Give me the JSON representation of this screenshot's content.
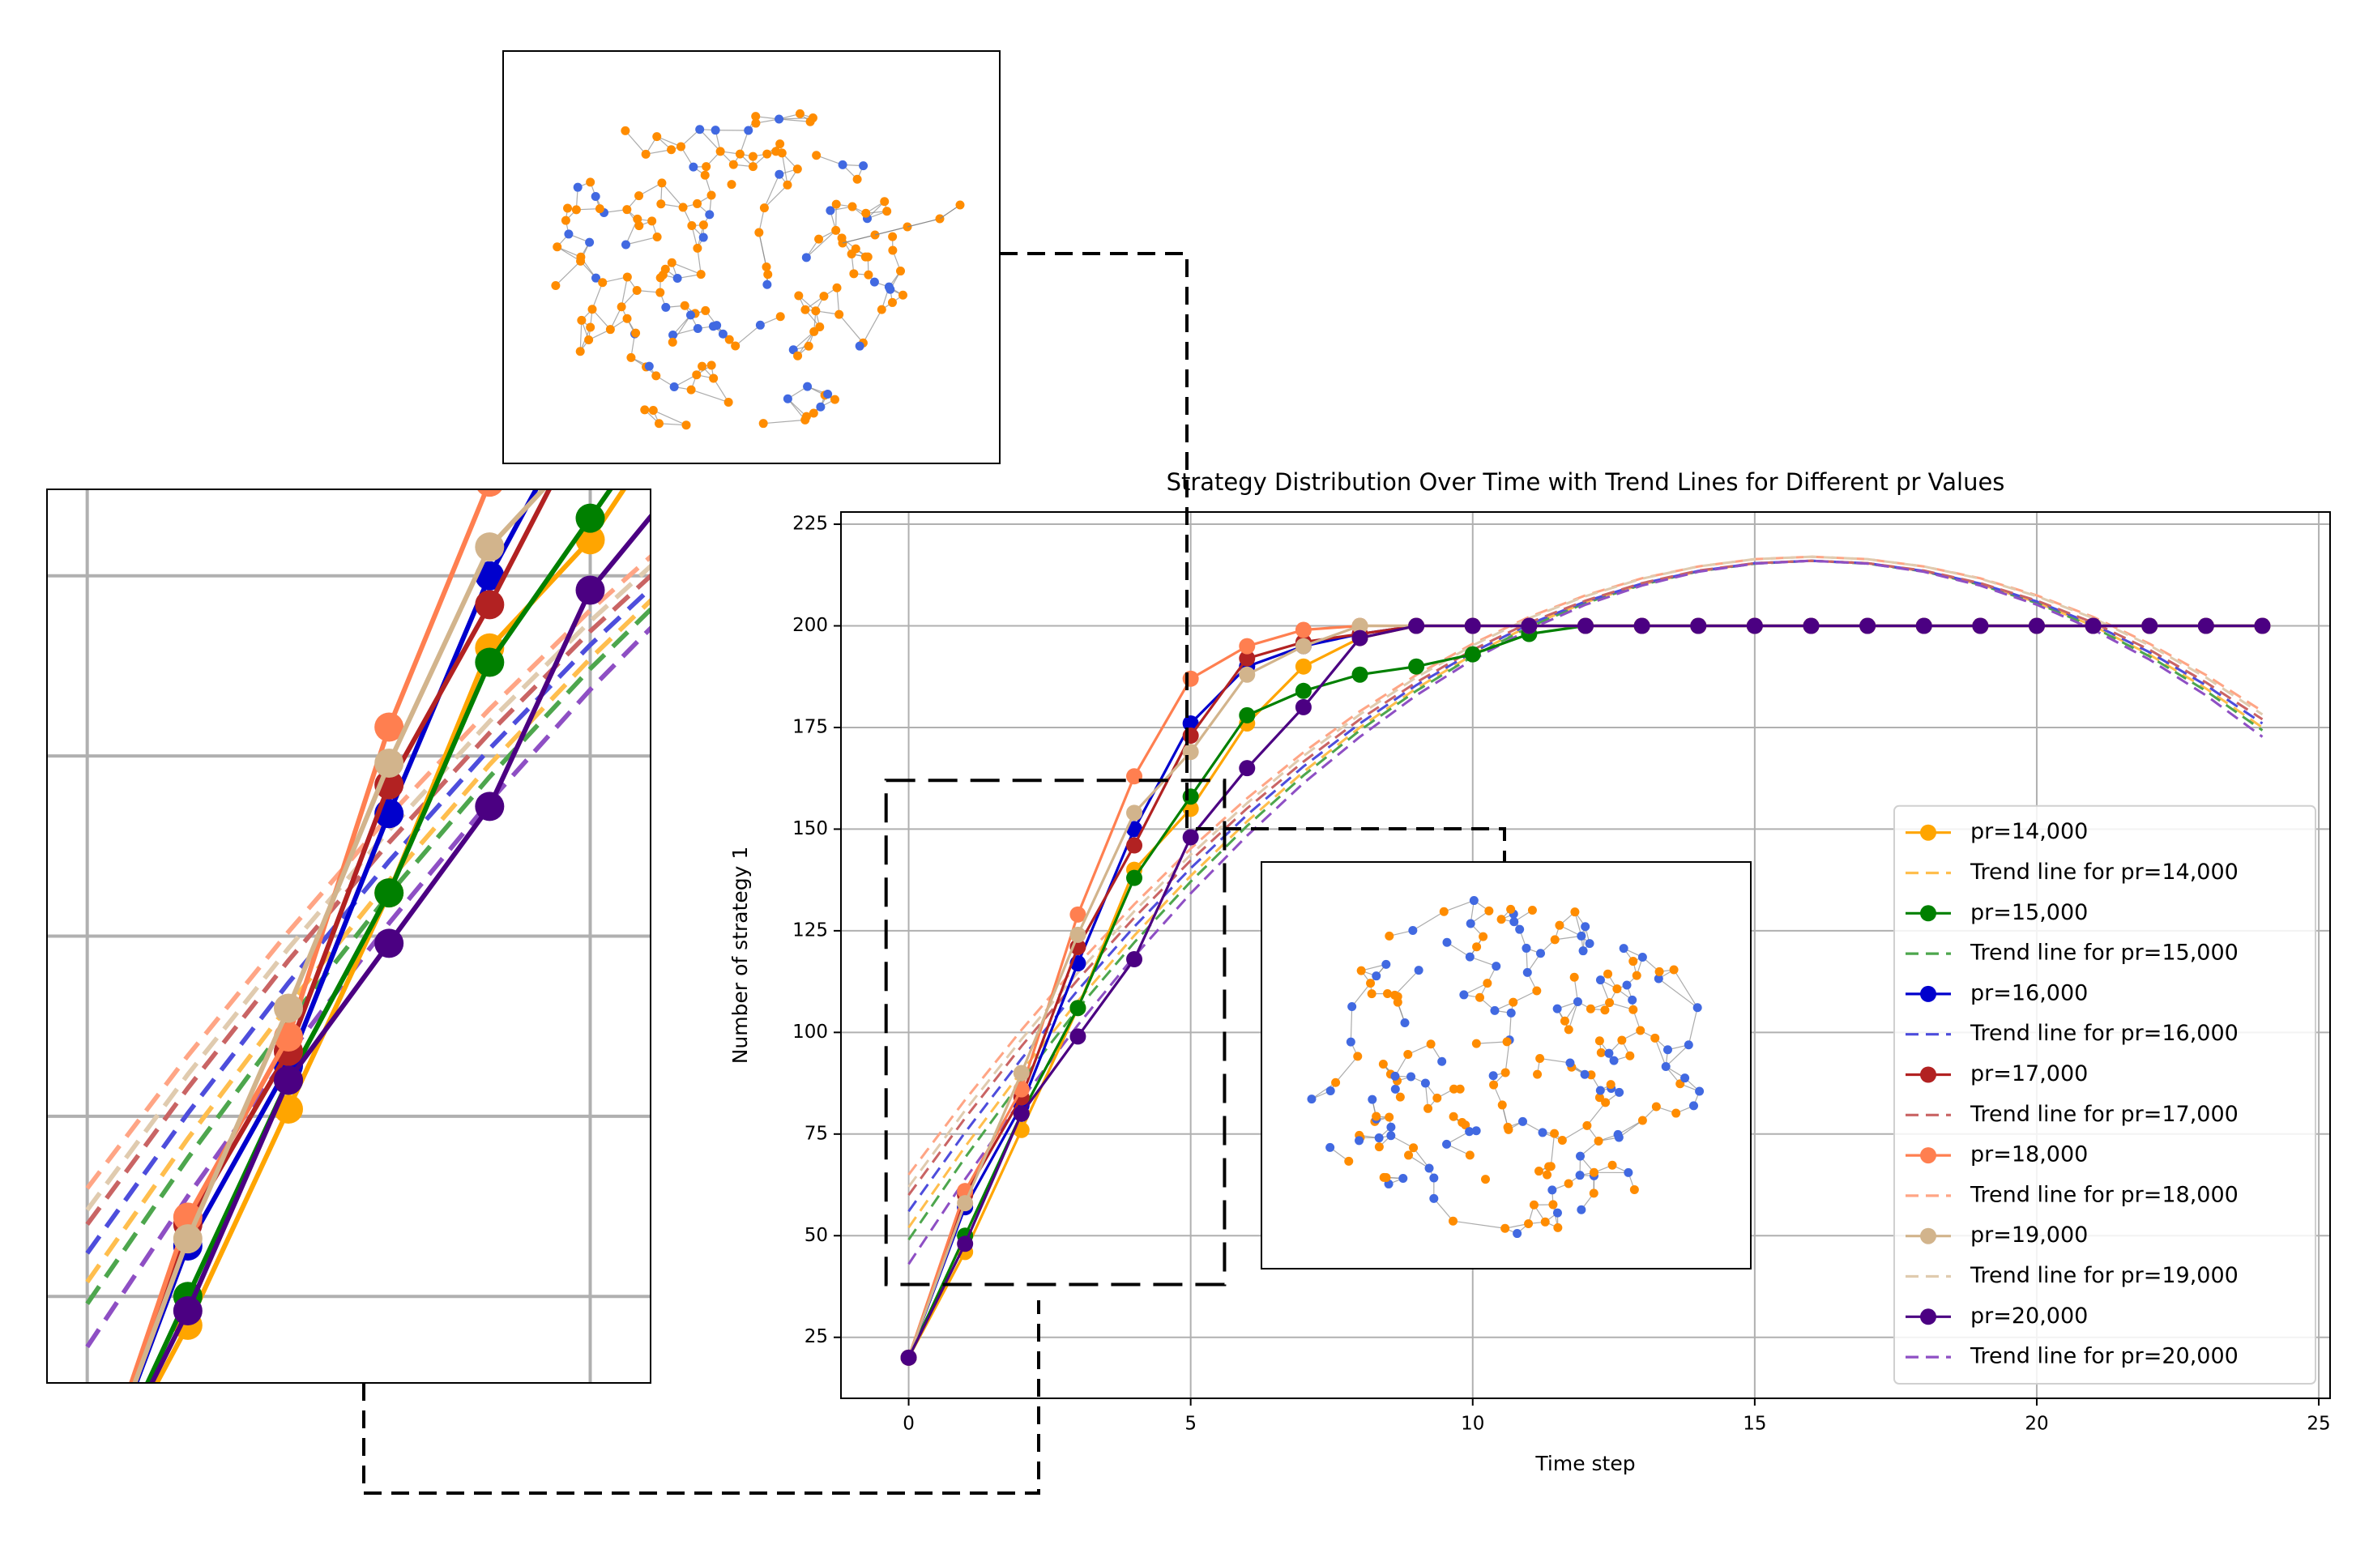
{
  "chart_data": {
    "type": "line",
    "title": "Strategy Distribution Over Time with Trend Lines for Different pr Values",
    "xlabel": "Time step",
    "ylabel": "Number of strategy 1",
    "x": [
      0,
      1,
      2,
      3,
      4,
      5,
      6,
      7,
      8,
      9,
      10,
      11,
      12,
      13,
      14,
      15,
      16,
      17,
      18,
      19,
      20,
      21,
      22,
      23,
      24
    ],
    "xlim": [
      -1.2,
      25.2
    ],
    "ylim": [
      10,
      228
    ],
    "xticks": [
      0,
      5,
      10,
      15,
      20,
      25
    ],
    "yticks": [
      25,
      50,
      75,
      100,
      125,
      150,
      175,
      200,
      225
    ],
    "grid": true,
    "legend": "lower right",
    "zoom": {
      "xlim": [
        -0.4,
        5.6
      ],
      "ylim": [
        38,
        162
      ]
    },
    "series": [
      {
        "name": "pr=14,000",
        "color": "#ffa500",
        "linestyle": "solid",
        "values": [
          20,
          46,
          76,
          106,
          140,
          155,
          176,
          190,
          197,
          200,
          200,
          200,
          200,
          200,
          200,
          200,
          200,
          200,
          200,
          200,
          200,
          200,
          200,
          200,
          200
        ]
      },
      {
        "name": "Trend line for pr=14,000",
        "color": "#ffbe4d",
        "linestyle": "dashed",
        "values": [
          52,
          71.9,
          90.4,
          107.7,
          123.8,
          138.5,
          151.9,
          164.1,
          175,
          184.6,
          192.9,
          200,
          205.8,
          210.2,
          213.4,
          215.4,
          216,
          215.4,
          213.4,
          210.2,
          205.8,
          200,
          192.9,
          184.6,
          175
        ]
      },
      {
        "name": "pr=15,000",
        "color": "#008000",
        "linestyle": "solid",
        "values": [
          20,
          50,
          80,
          106,
          138,
          158,
          178,
          184,
          188,
          190,
          193,
          198,
          200,
          200,
          200,
          200,
          200,
          200,
          200,
          200,
          200,
          200,
          200,
          200,
          200
        ]
      },
      {
        "name": "Trend line for pr=15,000",
        "color": "#4da64d",
        "linestyle": "dashed",
        "values": [
          49,
          69.2,
          88.1,
          105.8,
          122.1,
          137.1,
          150.8,
          163.2,
          174.3,
          184,
          192.5,
          199.7,
          205.6,
          210.1,
          213.4,
          215.3,
          216,
          215.3,
          213.4,
          210.1,
          205.6,
          199.7,
          192.5,
          184,
          174.3
        ]
      },
      {
        "name": "pr=16,000",
        "color": "#0000cd",
        "linestyle": "solid",
        "values": [
          20,
          57,
          82,
          117,
          150,
          176,
          190,
          195,
          198,
          200,
          200,
          200,
          200,
          200,
          200,
          200,
          200,
          200,
          200,
          200,
          200,
          200,
          200,
          200,
          200
        ]
      },
      {
        "name": "Trend line for pr=16,000",
        "color": "#4d4ddc",
        "linestyle": "dashed",
        "values": [
          56,
          75.4,
          93.5,
          110.4,
          126,
          140.4,
          153.5,
          165.4,
          176,
          185.4,
          193.5,
          200.4,
          206,
          210.4,
          213.5,
          215.4,
          216,
          215.4,
          213.5,
          210.4,
          206,
          200.4,
          193.5,
          185.4,
          176
        ]
      },
      {
        "name": "pr=17,000",
        "color": "#b22222",
        "linestyle": "solid",
        "values": [
          20,
          60,
          84,
          121,
          146,
          173,
          192,
          196,
          198,
          200,
          200,
          200,
          200,
          200,
          200,
          200,
          200,
          200,
          200,
          200,
          200,
          200,
          200,
          200,
          200
        ]
      },
      {
        "name": "Trend line for pr=17,000",
        "color": "#c96464",
        "linestyle": "dashed",
        "values": [
          60,
          78.9,
          96.6,
          113,
          128.2,
          142.3,
          155.1,
          166.6,
          177,
          186.1,
          194.1,
          200.8,
          206.2,
          210.5,
          213.6,
          215.4,
          216,
          215.4,
          213.6,
          210.5,
          206.2,
          200.8,
          194.1,
          186.1,
          177
        ]
      },
      {
        "name": "pr=18,000",
        "color": "#ff7f50",
        "linestyle": "solid",
        "values": [
          20,
          61,
          86,
          129,
          163,
          187,
          195,
          199,
          200,
          200,
          200,
          200,
          200,
          200,
          200,
          200,
          200,
          200,
          200,
          200,
          200,
          200,
          200,
          200,
          200
        ]
      },
      {
        "name": "Trend line for pr=18,000",
        "color": "#ffa585",
        "linestyle": "dashed",
        "values": [
          65,
          83.4,
          100.6,
          116.7,
          131.5,
          145.2,
          157.6,
          168.9,
          179,
          187.9,
          195.6,
          202.2,
          207.5,
          211.7,
          214.6,
          216.4,
          217,
          216.4,
          214.6,
          211.7,
          207.5,
          202.2,
          195.6,
          187.9,
          179
        ]
      },
      {
        "name": "pr=19,000",
        "color": "#d2b48c",
        "linestyle": "solid",
        "values": [
          20,
          58,
          90,
          124,
          154,
          169,
          188,
          195,
          200,
          200,
          200,
          200,
          200,
          200,
          200,
          200,
          200,
          200,
          200,
          200,
          200,
          200,
          200,
          200,
          200
        ]
      },
      {
        "name": "Trend line for pr=19,000",
        "color": "#e0cbaf",
        "linestyle": "dashed",
        "values": [
          62,
          80.8,
          98.3,
          114.7,
          129.8,
          143.7,
          156.4,
          168,
          178.2,
          187.3,
          195.2,
          201.9,
          207.3,
          211.6,
          214.6,
          216.4,
          217,
          216.4,
          214.6,
          211.6,
          207.3,
          201.9,
          195.2,
          187.3,
          178.2
        ]
      },
      {
        "name": "pr=20,000",
        "color": "#4b0082",
        "linestyle": "solid",
        "values": [
          20,
          48,
          80,
          99,
          118,
          148,
          165,
          180,
          197,
          200,
          200,
          200,
          200,
          200,
          200,
          200,
          200,
          200,
          200,
          200,
          200,
          200,
          200,
          200,
          200
        ]
      },
      {
        "name": "Trend line for pr=20,000",
        "color": "#8e4fc4",
        "linestyle": "dashed",
        "values": [
          43,
          63.9,
          83.5,
          101.8,
          118.7,
          134.2,
          148.4,
          161.3,
          172.7,
          182.9,
          191.7,
          199.1,
          205.2,
          209.9,
          213.3,
          215.3,
          216,
          215.3,
          213.3,
          209.9,
          205.2,
          199.1,
          191.7,
          182.9,
          172.7
        ]
      }
    ]
  }
}
